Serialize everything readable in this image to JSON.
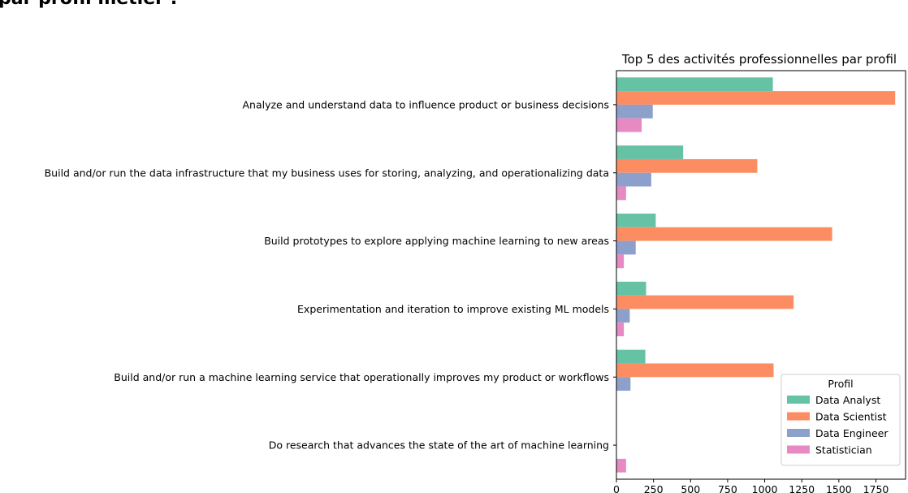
{
  "page": {
    "heading": "par profil métier :"
  },
  "chart_data": {
    "type": "bar",
    "orientation": "horizontal",
    "title": "Top 5 des activités professionnelles par profil",
    "xlabel": "",
    "ylabel": "",
    "categories": [
      "Analyze and understand data to influence product or business decisions",
      "Build and/or run the data infrastructure that my business uses for storing, analyzing, and operationalizing data",
      "Build prototypes to explore applying machine learning to new areas",
      "Experimentation and iteration to improve existing ML models",
      "Build and/or run a machine learning service that operationally improves my product or workflows",
      "Do research that advances the state of the art of machine learning"
    ],
    "series": [
      {
        "name": "Data Analyst",
        "color": "#66c2a5",
        "values": [
          1055,
          450,
          265,
          200,
          195,
          null
        ]
      },
      {
        "name": "Data Scientist",
        "color": "#fc8d62",
        "values": [
          1880,
          950,
          1455,
          1195,
          1060,
          null
        ]
      },
      {
        "name": "Data Engineer",
        "color": "#8da0cb",
        "values": [
          245,
          235,
          130,
          90,
          95,
          null
        ]
      },
      {
        "name": "Statistician",
        "color": "#e78ac3",
        "values": [
          170,
          65,
          50,
          50,
          null,
          65
        ]
      }
    ],
    "xticks": [
      0,
      250,
      500,
      750,
      1000,
      1250,
      1500,
      1750
    ],
    "xticklabels": [
      "0",
      "250",
      "500",
      "750",
      "1000",
      "1250",
      "1500",
      "1750"
    ],
    "xlim": [
      0,
      1950
    ],
    "grid": false,
    "legend": {
      "title": "Profil",
      "position": "lower-right"
    }
  }
}
